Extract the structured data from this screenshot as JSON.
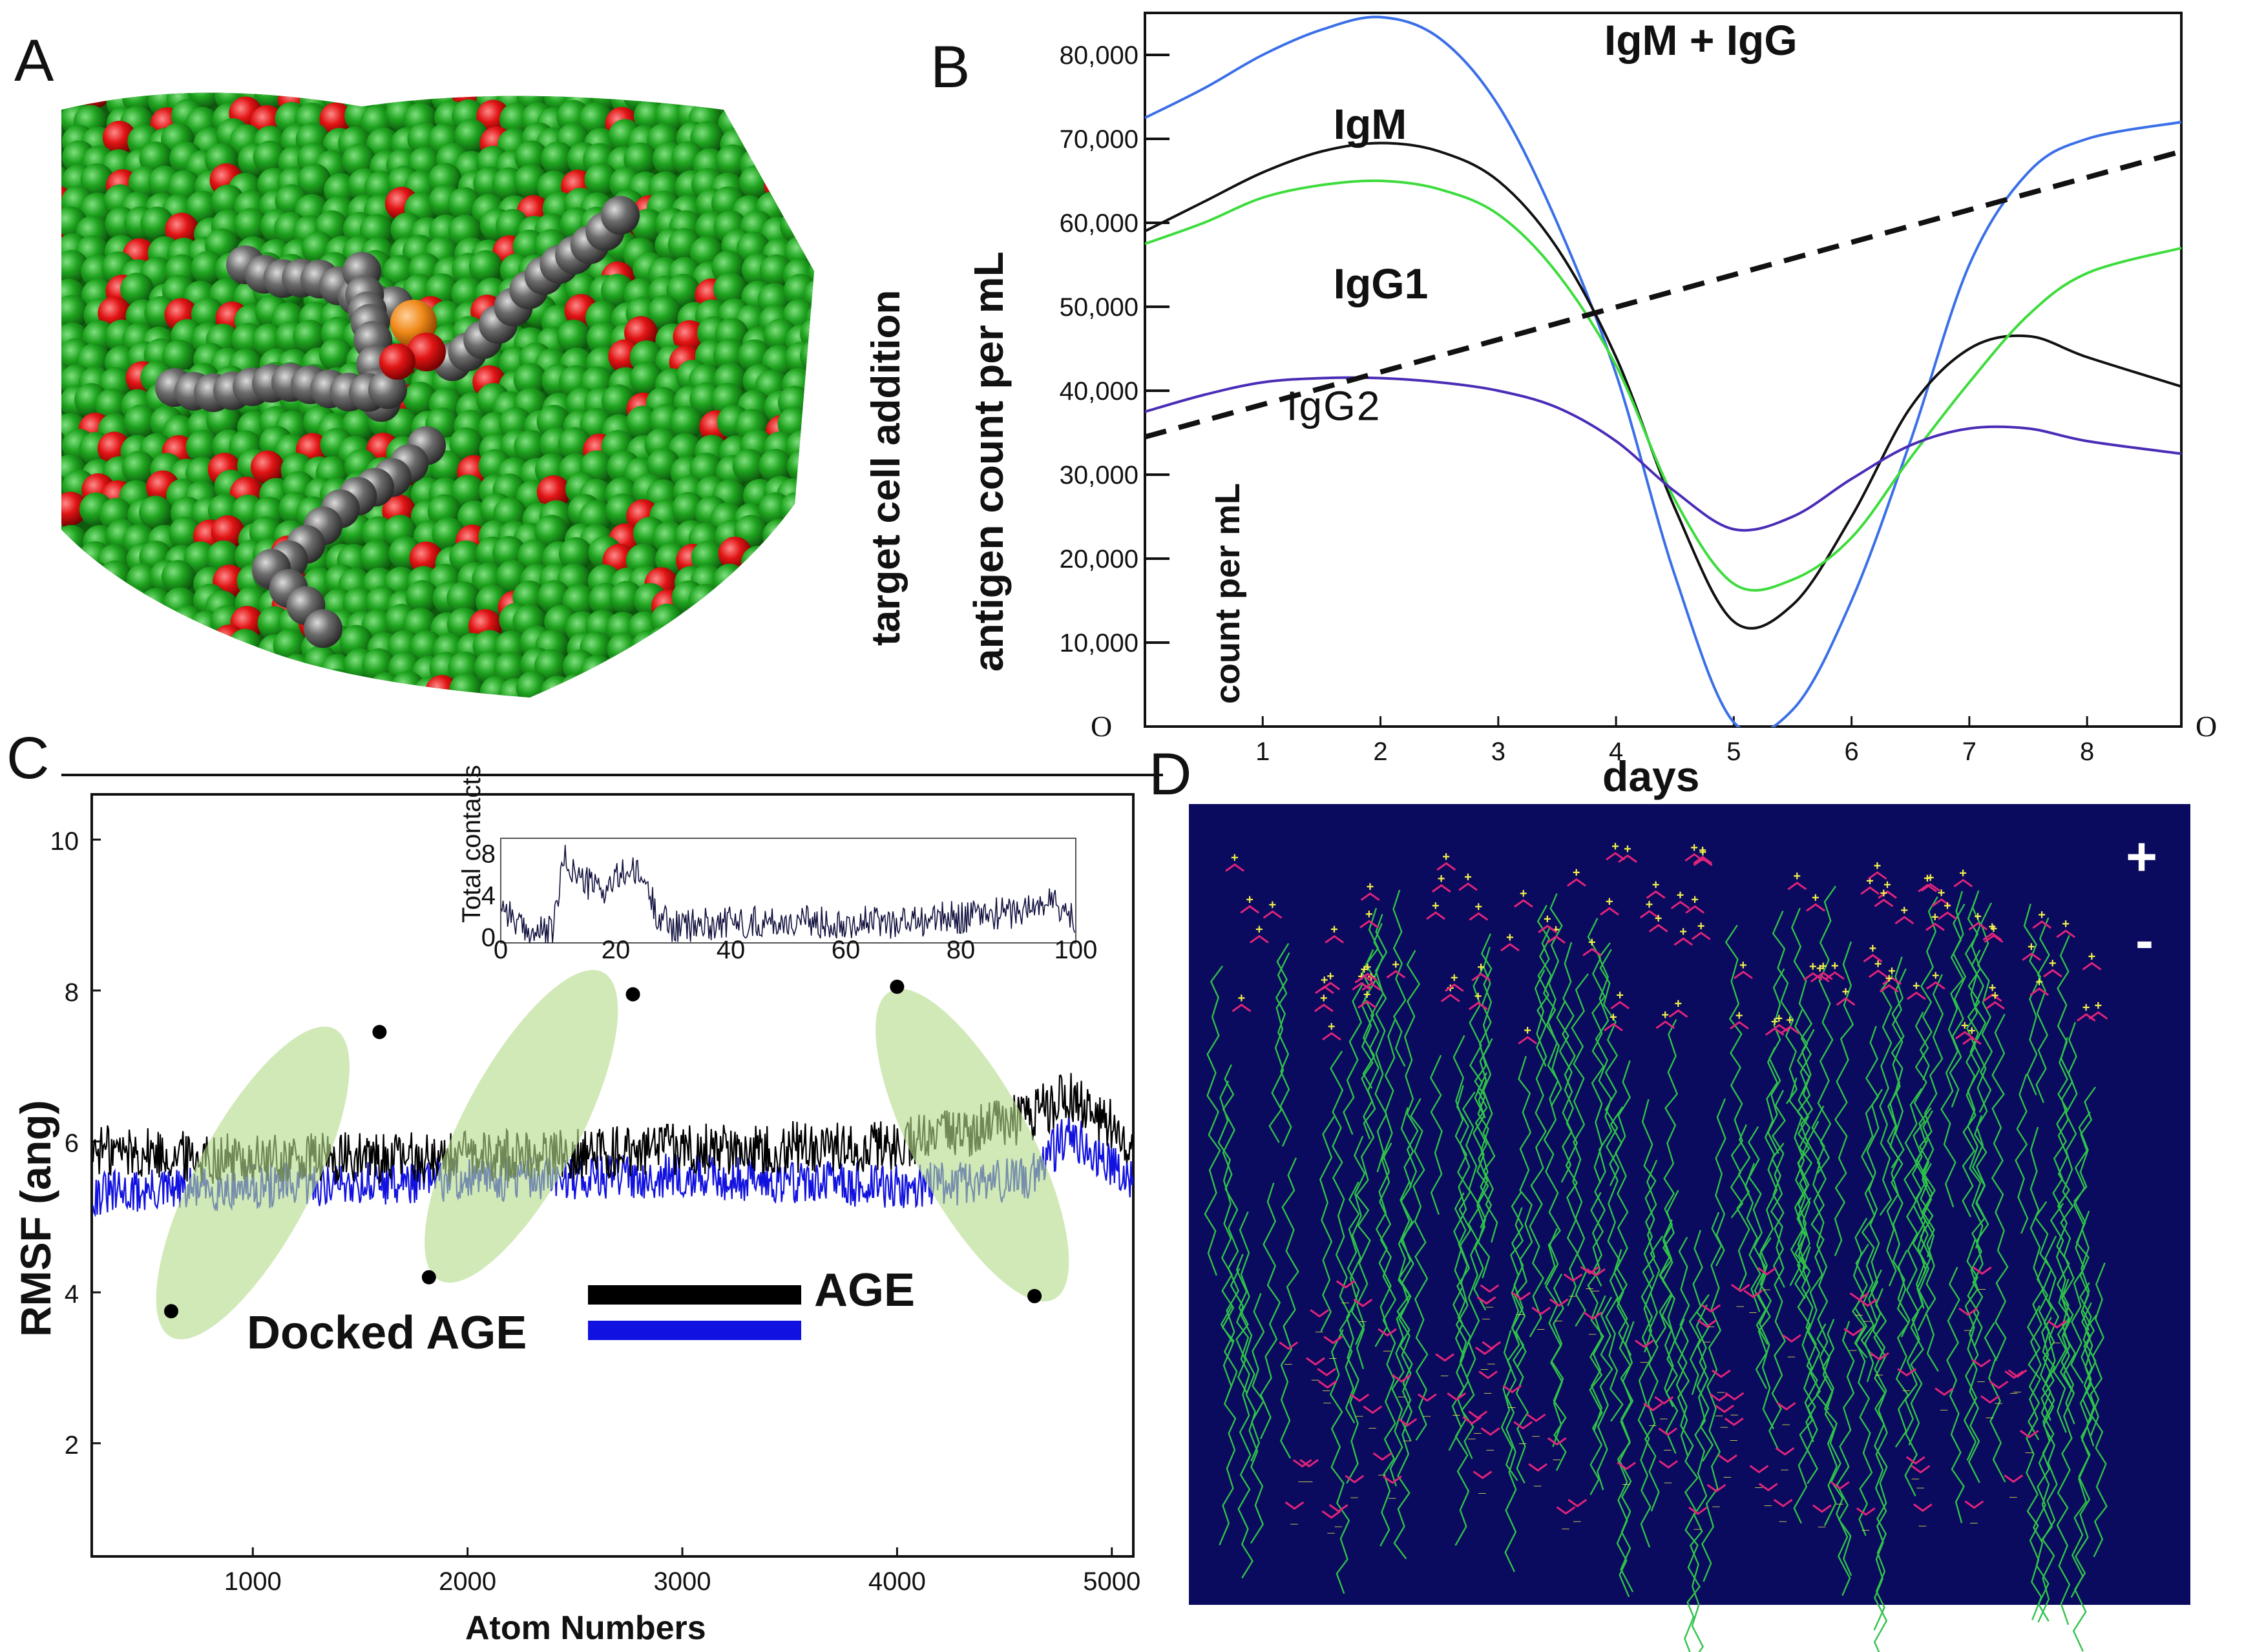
{
  "panels": {
    "a": "A",
    "b": "B",
    "c": "C",
    "d": "D"
  },
  "panel_a": {
    "side_label": "target cell addition"
  },
  "panel_d": {
    "plus_label": "+",
    "minus_label": "-"
  },
  "colors": {
    "green": "#1d8c1d",
    "red": "#d41010",
    "gray": "#6a6a6a",
    "navy": "#0a0a5e",
    "blue": "#1a5cff",
    "lightgreen": "#c7e6a4"
  },
  "chart_data": [
    {
      "type": "line",
      "title": "",
      "xlabel": "days",
      "ylabel": "antigen count per mL",
      "ylabel2": "count per mL",
      "origin_label_left": "O",
      "origin_label_right": "O",
      "xlim": [
        0,
        8.8
      ],
      "ylim": [
        0,
        85000
      ],
      "x_ticks": [
        "1",
        "2",
        "3",
        "4",
        "5",
        "6",
        "7",
        "8"
      ],
      "y_ticks": [
        "10,000",
        "20,000",
        "30,000",
        "40,000",
        "50,000",
        "60,000",
        "70,000",
        "80,000"
      ],
      "y_tick_values": [
        10000,
        20000,
        30000,
        40000,
        50000,
        60000,
        70000,
        80000
      ],
      "series": [
        {
          "name": "IgM + IgG",
          "color": "#3a6fe8",
          "label_x": 3.9,
          "label_y": 80000,
          "x": [
            0,
            0.5,
            1,
            1.5,
            2,
            2.5,
            3,
            3.5,
            4,
            4.5,
            5,
            5.5,
            6,
            6.5,
            7,
            7.5,
            8,
            8.8
          ],
          "y": [
            72500,
            76000,
            80000,
            83000,
            84500,
            82000,
            74000,
            60000,
            42000,
            18000,
            500,
            2000,
            15000,
            34000,
            55000,
            66000,
            70000,
            72000
          ]
        },
        {
          "name": "IgM",
          "color": "#111111",
          "label_x": 1.6,
          "label_y": 70000,
          "x": [
            0,
            0.5,
            1,
            1.5,
            2,
            2.5,
            3,
            3.5,
            4,
            4.5,
            5,
            5.5,
            6,
            6.5,
            7,
            7.5,
            8,
            8.8
          ],
          "y": [
            59000,
            62500,
            66000,
            68500,
            69500,
            68500,
            65000,
            57000,
            44000,
            26000,
            12500,
            14500,
            25000,
            38000,
            45000,
            46500,
            44000,
            40500
          ]
        },
        {
          "name": "IgG1",
          "color": "#3ddc3d",
          "label_x": 1.6,
          "label_y": 51000,
          "x": [
            0,
            0.5,
            1,
            1.5,
            2,
            2.5,
            3,
            3.5,
            4,
            4.5,
            5,
            5.5,
            6,
            6.5,
            7,
            7.5,
            8,
            8.8
          ],
          "y": [
            57500,
            60000,
            63000,
            64500,
            65000,
            64000,
            61000,
            54000,
            43000,
            27000,
            17000,
            17500,
            22500,
            32000,
            41000,
            49000,
            54000,
            57000
          ]
        },
        {
          "name": "IgG2",
          "color": "#4a2cb6",
          "label_x": 1.2,
          "label_y": 36500,
          "x": [
            0,
            0.5,
            1,
            1.5,
            2,
            2.5,
            3,
            3.5,
            4,
            4.5,
            5,
            5.5,
            6,
            6.5,
            7,
            7.5,
            8,
            8.8
          ],
          "y": [
            37500,
            39500,
            41000,
            41500,
            41500,
            41000,
            40000,
            38000,
            34000,
            28000,
            23500,
            25000,
            29500,
            33500,
            35500,
            35500,
            34000,
            32500
          ]
        },
        {
          "name": "target",
          "color": "#111111",
          "dashed": true,
          "x": [
            0,
            8.8
          ],
          "y": [
            34500,
            68500
          ]
        }
      ]
    },
    {
      "type": "line",
      "title": "",
      "xlabel": "Atom Numbers",
      "ylabel": "RMSF (ang)",
      "xlim": [
        250,
        5100
      ],
      "ylim": [
        0.5,
        10.6
      ],
      "x_ticks": [
        "1000",
        "2000",
        "3000",
        "4000",
        "5000"
      ],
      "x_tick_values": [
        1000,
        2000,
        3000,
        4000,
        5000
      ],
      "y_ticks": [
        "2",
        "4",
        "6",
        "8",
        "10"
      ],
      "y_tick_values": [
        2,
        4,
        6,
        8,
        10
      ],
      "series": [
        {
          "name": "AGE",
          "color": "#000000",
          "mean": [
            [
              250,
              5.9
            ],
            [
              1000,
              5.75
            ],
            [
              2000,
              5.8
            ],
            [
              3000,
              5.9
            ],
            [
              4000,
              5.95
            ],
            [
              4600,
              6.3
            ],
            [
              4800,
              6.6
            ],
            [
              5100,
              6.0
            ]
          ],
          "noise": 0.35
        },
        {
          "name": "Docked AGE",
          "color": "#1212e0",
          "mean": [
            [
              250,
              5.3
            ],
            [
              1000,
              5.4
            ],
            [
              2000,
              5.5
            ],
            [
              3000,
              5.55
            ],
            [
              4000,
              5.4
            ],
            [
              4600,
              5.5
            ],
            [
              4800,
              6.1
            ],
            [
              5100,
              5.5
            ]
          ],
          "noise": 0.3
        }
      ],
      "legend": [
        {
          "label": "AGE",
          "color": "#000000"
        },
        {
          "label": "Docked AGE",
          "color": "#1212e0"
        }
      ],
      "ellipses": [
        {
          "cx": 1000,
          "cy": 5.45,
          "note": "highlight"
        },
        {
          "cx": 2250,
          "cy": 6.2,
          "note": "highlight"
        },
        {
          "cx": 4350,
          "cy": 5.95,
          "note": "highlight"
        }
      ],
      "points": [
        [
          620,
          3.75
        ],
        [
          1590,
          7.45
        ],
        [
          1820,
          4.2
        ],
        [
          2770,
          7.95
        ],
        [
          4000,
          8.05
        ],
        [
          4640,
          3.95
        ]
      ],
      "inset": {
        "ylabel": "Total contacts",
        "xlim": [
          0,
          100
        ],
        "ylim": [
          0,
          10
        ],
        "x_ticks": [
          "0",
          "20",
          "40",
          "60",
          "80",
          "100"
        ],
        "x_tick_values": [
          0,
          20,
          40,
          60,
          80,
          100
        ],
        "y_ticks": [
          "0",
          "4",
          "8"
        ],
        "y_tick_values": [
          0,
          4,
          8
        ],
        "profile": [
          [
            0,
            4
          ],
          [
            4,
            1
          ],
          [
            9,
            1
          ],
          [
            11,
            8
          ],
          [
            14,
            6
          ],
          [
            18,
            5
          ],
          [
            22,
            7
          ],
          [
            25,
            6
          ],
          [
            27,
            3
          ],
          [
            30,
            1.5
          ],
          [
            40,
            2
          ],
          [
            60,
            2
          ],
          [
            70,
            2
          ],
          [
            80,
            2.5
          ],
          [
            90,
            3
          ],
          [
            96,
            4
          ],
          [
            100,
            2
          ]
        ]
      }
    }
  ]
}
